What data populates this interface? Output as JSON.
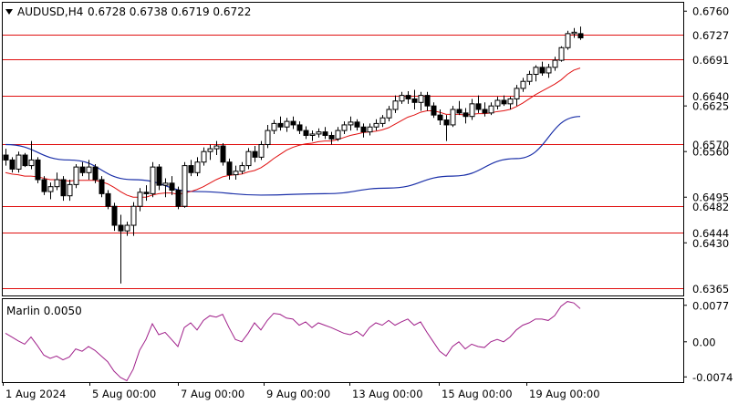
{
  "header": {
    "symbol": "AUDUSD,H4",
    "ohlc": "0.6728 0.6738 0.6719 0.6722"
  },
  "indicator": {
    "label": "Marlin 0.0050"
  },
  "colors": {
    "level_line": "#e01010",
    "ma_fast": "#e01010",
    "ma_slow": "#1a2fa8",
    "marlin": "#a0208a",
    "candle_border": "#000000",
    "bull_fill": "#ffffff",
    "bear_fill": "#000000",
    "label_bg": "#ffffff"
  },
  "chart_data": [
    {
      "type": "candlestick",
      "symbol": "AUDUSD",
      "timeframe": "H4",
      "xlabels": [
        "1 Aug 2024",
        "5 Aug 00:00",
        "7 Aug 00:00",
        "9 Aug 00:00",
        "13 Aug 00:00",
        "15 Aug 00:00",
        "19 Aug 00:00"
      ],
      "ylim": [
        0.6355,
        0.6772
      ],
      "y_ticks": [
        "0.6760",
        "0.6625",
        "0.6560",
        "0.6495",
        "0.6430"
      ],
      "levels": [
        "0.6727",
        "0.6691",
        "0.6640",
        "0.6570",
        "0.6482",
        "0.6444",
        "0.6365"
      ],
      "candles": [
        [
          0.6555,
          0.6564,
          0.654,
          0.6548
        ],
        [
          0.6548,
          0.6552,
          0.653,
          0.6535
        ],
        [
          0.6535,
          0.656,
          0.653,
          0.6555
        ],
        [
          0.6555,
          0.6558,
          0.6538,
          0.654
        ],
        [
          0.654,
          0.6575,
          0.6535,
          0.6548
        ],
        [
          0.6548,
          0.6552,
          0.6515,
          0.652
        ],
        [
          0.652,
          0.6525,
          0.6498,
          0.6503
        ],
        [
          0.6503,
          0.6516,
          0.6492,
          0.651
        ],
        [
          0.651,
          0.653,
          0.6505,
          0.652
        ],
        [
          0.652,
          0.6525,
          0.649,
          0.6497
        ],
        [
          0.6497,
          0.652,
          0.649,
          0.6513
        ],
        [
          0.6513,
          0.6542,
          0.6508,
          0.6538
        ],
        [
          0.6538,
          0.6545,
          0.6525,
          0.653
        ],
        [
          0.653,
          0.6548,
          0.652,
          0.6538
        ],
        [
          0.6538,
          0.6542,
          0.6515,
          0.652
        ],
        [
          0.652,
          0.6525,
          0.6495,
          0.65
        ],
        [
          0.65,
          0.6505,
          0.6478,
          0.6482
        ],
        [
          0.6482,
          0.6487,
          0.6447,
          0.6455
        ],
        [
          0.6455,
          0.647,
          0.6372,
          0.6447
        ],
        [
          0.6447,
          0.646,
          0.644,
          0.6455
        ],
        [
          0.6455,
          0.6488,
          0.644,
          0.6482
        ],
        [
          0.6482,
          0.6508,
          0.6475,
          0.6502
        ],
        [
          0.6502,
          0.6512,
          0.649,
          0.65
        ],
        [
          0.65,
          0.6545,
          0.6495,
          0.6538
        ],
        [
          0.6538,
          0.6542,
          0.6505,
          0.6512
        ],
        [
          0.6512,
          0.6522,
          0.6495,
          0.6515
        ],
        [
          0.6515,
          0.6525,
          0.6498,
          0.6505
        ],
        [
          0.6505,
          0.651,
          0.6478,
          0.6482
        ],
        [
          0.6482,
          0.6545,
          0.648,
          0.654
        ],
        [
          0.654,
          0.6548,
          0.6525,
          0.653
        ],
        [
          0.653,
          0.6552,
          0.6525,
          0.6545
        ],
        [
          0.6545,
          0.6566,
          0.654,
          0.656
        ],
        [
          0.656,
          0.657,
          0.6548,
          0.6564
        ],
        [
          0.6564,
          0.6575,
          0.6555,
          0.6568
        ],
        [
          0.6568,
          0.6572,
          0.654,
          0.6545
        ],
        [
          0.6545,
          0.655,
          0.652,
          0.6527
        ],
        [
          0.6527,
          0.654,
          0.652,
          0.6532
        ],
        [
          0.6532,
          0.6545,
          0.6528,
          0.654
        ],
        [
          0.654,
          0.6565,
          0.6535,
          0.656
        ],
        [
          0.656,
          0.6568,
          0.6545,
          0.6552
        ],
        [
          0.6552,
          0.6575,
          0.6548,
          0.657
        ],
        [
          0.657,
          0.6598,
          0.6565,
          0.659
        ],
        [
          0.659,
          0.6605,
          0.6585,
          0.66
        ],
        [
          0.66,
          0.661,
          0.659,
          0.6595
        ],
        [
          0.6595,
          0.6608,
          0.6588,
          0.6603
        ],
        [
          0.6603,
          0.661,
          0.6592,
          0.6598
        ],
        [
          0.6598,
          0.6603,
          0.6585,
          0.659
        ],
        [
          0.659,
          0.6596,
          0.6578,
          0.6583
        ],
        [
          0.6583,
          0.659,
          0.6575,
          0.6585
        ],
        [
          0.6585,
          0.6593,
          0.658,
          0.6588
        ],
        [
          0.6588,
          0.6595,
          0.6578,
          0.6583
        ],
        [
          0.6583,
          0.6588,
          0.657,
          0.6578
        ],
        [
          0.6578,
          0.6595,
          0.6575,
          0.659
        ],
        [
          0.659,
          0.6603,
          0.6585,
          0.6598
        ],
        [
          0.6598,
          0.661,
          0.659,
          0.6602
        ],
        [
          0.6602,
          0.6606,
          0.659,
          0.6595
        ],
        [
          0.6595,
          0.66,
          0.658,
          0.6588
        ],
        [
          0.6588,
          0.66,
          0.6583,
          0.6595
        ],
        [
          0.6595,
          0.6606,
          0.659,
          0.66
        ],
        [
          0.66,
          0.6612,
          0.6595,
          0.6608
        ],
        [
          0.6608,
          0.6625,
          0.6603,
          0.662
        ],
        [
          0.662,
          0.664,
          0.6615,
          0.6632
        ],
        [
          0.6632,
          0.6645,
          0.6628,
          0.664
        ],
        [
          0.664,
          0.6646,
          0.6628,
          0.6635
        ],
        [
          0.6635,
          0.6648,
          0.662,
          0.663
        ],
        [
          0.663,
          0.6645,
          0.6618,
          0.664
        ],
        [
          0.664,
          0.6645,
          0.6618,
          0.6625
        ],
        [
          0.6625,
          0.663,
          0.6608,
          0.6612
        ],
        [
          0.6612,
          0.662,
          0.6598,
          0.6605
        ],
        [
          0.6605,
          0.6612,
          0.6575,
          0.6598
        ],
        [
          0.6598,
          0.6625,
          0.6595,
          0.662
        ],
        [
          0.662,
          0.6632,
          0.6612,
          0.6615
        ],
        [
          0.6615,
          0.6622,
          0.66,
          0.661
        ],
        [
          0.661,
          0.6635,
          0.6605,
          0.6628
        ],
        [
          0.6628,
          0.664,
          0.6615,
          0.662
        ],
        [
          0.662,
          0.663,
          0.661,
          0.6615
        ],
        [
          0.6615,
          0.663,
          0.6612,
          0.6625
        ],
        [
          0.6625,
          0.6638,
          0.662,
          0.6633
        ],
        [
          0.6633,
          0.664,
          0.6625,
          0.6628
        ],
        [
          0.6628,
          0.6638,
          0.662,
          0.6635
        ],
        [
          0.6635,
          0.6655,
          0.6625,
          0.665
        ],
        [
          0.665,
          0.6665,
          0.6645,
          0.666
        ],
        [
          0.666,
          0.6675,
          0.6655,
          0.667
        ],
        [
          0.667,
          0.6683,
          0.666,
          0.668
        ],
        [
          0.668,
          0.6688,
          0.6668,
          0.6672
        ],
        [
          0.6672,
          0.6685,
          0.6665,
          0.668
        ],
        [
          0.668,
          0.6695,
          0.6675,
          0.669
        ],
        [
          0.669,
          0.671,
          0.6688,
          0.6708
        ],
        [
          0.6708,
          0.6732,
          0.6705,
          0.6728
        ],
        [
          0.6728,
          0.6736,
          0.6722,
          0.673
        ],
        [
          0.6728,
          0.6738,
          0.6719,
          0.6722
        ]
      ],
      "ma_fast": [
        0.653,
        0.6528,
        0.6527,
        0.6525,
        0.6525,
        0.6524,
        0.6522,
        0.652,
        0.652,
        0.6519,
        0.6518,
        0.6519,
        0.6519,
        0.6519,
        0.6519,
        0.6517,
        0.6514,
        0.6509,
        0.6503,
        0.6498,
        0.6495,
        0.6495,
        0.6495,
        0.6498,
        0.65,
        0.6501,
        0.6501,
        0.6499,
        0.6501,
        0.6503,
        0.6506,
        0.651,
        0.6515,
        0.652,
        0.6524,
        0.6526,
        0.6527,
        0.6528,
        0.6531,
        0.6533,
        0.6537,
        0.6543,
        0.655,
        0.6556,
        0.6562,
        0.6566,
        0.6569,
        0.6571,
        0.6572,
        0.6574,
        0.6575,
        0.6575,
        0.6577,
        0.658,
        0.6583,
        0.6585,
        0.6587,
        0.6588,
        0.6589,
        0.6591,
        0.6594,
        0.6599,
        0.6604,
        0.6609,
        0.6612,
        0.6616,
        0.6618,
        0.6618,
        0.6616,
        0.6613,
        0.6613,
        0.6613,
        0.6612,
        0.6613,
        0.6614,
        0.6614,
        0.6615,
        0.6617,
        0.6618,
        0.662,
        0.6624,
        0.6629,
        0.6635,
        0.6641,
        0.6646,
        0.6651,
        0.6656,
        0.6662,
        0.667,
        0.6676,
        0.6679
      ],
      "ma_slow_points": [
        [
          0,
          0.657
        ],
        [
          10,
          0.6548
        ],
        [
          20,
          0.652
        ],
        [
          30,
          0.6503
        ],
        [
          40,
          0.6498
        ],
        [
          50,
          0.65
        ],
        [
          60,
          0.6508
        ],
        [
          70,
          0.6525
        ],
        [
          80,
          0.655
        ],
        [
          90,
          0.661
        ]
      ],
      "marlin": {
        "label": "Marlin 0.0050",
        "ylim": [
          -0.0085,
          0.009
        ],
        "y_ticks": [
          "0.0077",
          "0.00",
          "-0.0074"
        ],
        "values": [
          0.0018,
          0.001,
          0.0002,
          -0.0005,
          0.001,
          -0.0008,
          -0.0028,
          -0.0035,
          -0.003,
          -0.0038,
          -0.0032,
          -0.0015,
          -0.002,
          -0.001,
          -0.0018,
          -0.003,
          -0.0042,
          -0.0062,
          -0.0075,
          -0.0082,
          -0.0058,
          -0.0018,
          0.0005,
          0.0038,
          0.0015,
          0.002,
          0.0005,
          -0.001,
          0.003,
          0.004,
          0.0025,
          0.0045,
          0.0055,
          0.0052,
          0.0058,
          0.003,
          0.0005,
          0.0,
          0.0018,
          0.004,
          0.0025,
          0.0045,
          0.006,
          0.0058,
          0.005,
          0.0048,
          0.0035,
          0.0042,
          0.003,
          0.004,
          0.0035,
          0.003,
          0.0024,
          0.0018,
          0.0015,
          0.0022,
          0.0012,
          0.003,
          0.004,
          0.0035,
          0.0045,
          0.0035,
          0.0042,
          0.0048,
          0.0035,
          0.0042,
          0.002,
          0.0,
          -0.002,
          -0.003,
          -0.001,
          0.0,
          -0.0015,
          -0.0005,
          -0.001,
          -0.0012,
          0.0,
          0.0005,
          0.0,
          0.001,
          0.0025,
          0.0035,
          0.004,
          0.0048,
          0.0048,
          0.0045,
          0.0055,
          0.0075,
          0.0085,
          0.0082,
          0.007
        ]
      }
    }
  ]
}
